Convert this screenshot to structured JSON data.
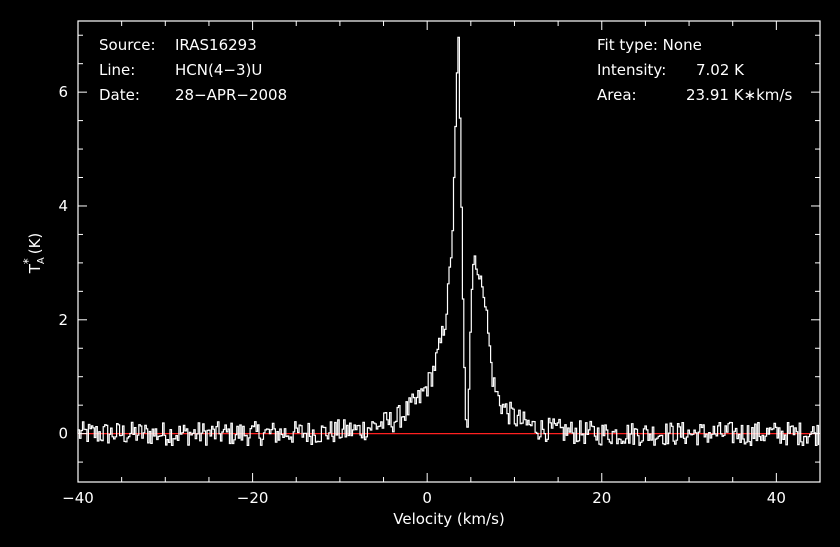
{
  "info_left": {
    "source_label": "Source:",
    "source_value": "IRAS16293",
    "line_label": "Line:",
    "line_value": "HCN(4−3)U",
    "date_label": "Date:",
    "date_value": "28−APR−2008"
  },
  "info_right": {
    "fit_label": "Fit type: None",
    "intensity_label": "Intensity:",
    "intensity_value": "7.02 K",
    "area_label": "Area:",
    "area_value": "23.91 K∗km/s"
  },
  "chart_data": {
    "type": "line",
    "xlabel": "Velocity (km/s)",
    "ylabel_main": "T",
    "ylabel_sup": "*",
    "ylabel_sub": "A",
    "ylabel_unit": "(K)",
    "xlim": [
      -40,
      45
    ],
    "ylim": [
      -0.85,
      7.25
    ],
    "xticks": [
      -40,
      -20,
      0,
      20,
      40
    ],
    "xtick_labels": [
      "−40",
      "−20",
      "0",
      "20",
      "40"
    ],
    "yticks": [
      0,
      2,
      4,
      6
    ],
    "ytick_labels": [
      "0",
      "2",
      "4",
      "6"
    ],
    "baseline": 0,
    "colors": {
      "spectrum": "#ffffff",
      "baseline": "#ff2020",
      "axes": "#ffffff"
    },
    "series": [
      {
        "x": [
          -40,
          -30,
          -20,
          -12,
          -8,
          -6,
          -4,
          -3,
          -2,
          -1,
          0,
          0.5,
          1,
          1.5,
          2,
          2.3,
          2.6,
          2.9,
          3.1,
          3.3,
          3.5,
          3.7,
          3.9,
          4.1,
          4.3,
          4.5,
          4.7,
          4.9,
          5.1,
          5.3,
          5.5,
          5.7,
          6,
          6.3,
          6.6,
          6.9,
          7.2,
          7.5,
          8,
          8.5,
          9,
          10,
          11,
          13,
          16,
          20,
          30,
          45
        ],
        "y": [
          0,
          0,
          0,
          0.02,
          0.06,
          0.14,
          0.22,
          0.32,
          0.45,
          0.6,
          0.85,
          1.05,
          1.3,
          1.6,
          2.0,
          2.4,
          3.0,
          3.8,
          4.8,
          6.0,
          7.02,
          5.6,
          3.4,
          1.6,
          0.5,
          0.1,
          0.9,
          2.0,
          2.8,
          3.1,
          3.15,
          2.9,
          2.55,
          2.75,
          2.3,
          1.8,
          1.3,
          0.9,
          0.65,
          0.5,
          0.4,
          0.28,
          0.18,
          0.08,
          0.03,
          0,
          0,
          0
        ]
      }
    ]
  }
}
